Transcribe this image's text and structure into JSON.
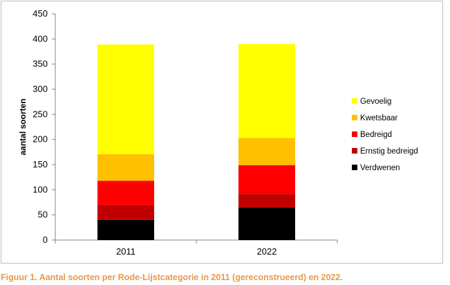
{
  "chart_data": {
    "type": "bar",
    "stacked": true,
    "categories": [
      "2011",
      "2022"
    ],
    "series": [
      {
        "name": "Verdwenen",
        "color": "#000000",
        "values": [
          40,
          65
        ]
      },
      {
        "name": "Ernstig bedreigd",
        "color": "#c00000",
        "values": [
          30,
          27
        ]
      },
      {
        "name": "Bedreigd",
        "color": "#ff0000",
        "values": [
          48,
          57
        ]
      },
      {
        "name": "Kwetsbaar",
        "color": "#ffc000",
        "values": [
          53,
          54
        ]
      },
      {
        "name": "Gevoelig",
        "color": "#ffff00",
        "values": [
          218,
          187
        ]
      }
    ],
    "ylabel": "aantal soorten",
    "xlabel": "",
    "ylim": [
      0,
      450
    ],
    "yticks": [
      0,
      50,
      100,
      150,
      200,
      250,
      300,
      350,
      400,
      450
    ],
    "grid": false,
    "legend": "right"
  },
  "caption": "Figuur 1. Aantal soorten per Rode-Lijstcategorie in 2011 (gereconstrueerd) en 2022."
}
